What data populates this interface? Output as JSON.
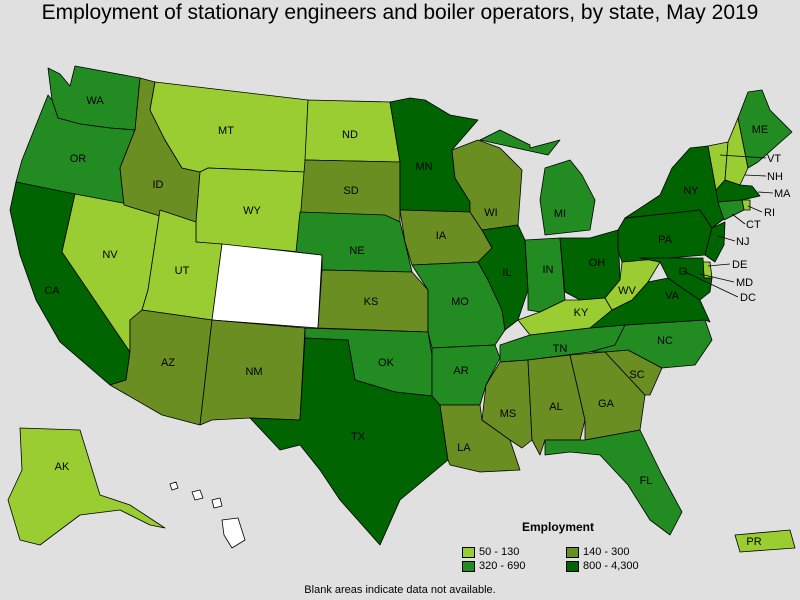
{
  "title": "Employment of stationary engineers and boiler operators, by state, May 2019",
  "legend": {
    "title": "Employment",
    "items": [
      {
        "label": "50 - 130",
        "color": "#9acd32"
      },
      {
        "label": "140 - 300",
        "color": "#6b8e23"
      },
      {
        "label": "320 - 690",
        "color": "#228b22"
      },
      {
        "label": "800 - 4,300",
        "color": "#006400"
      }
    ]
  },
  "colors": {
    "no_data": "#ffffff",
    "border": "#000000",
    "background": "#e0e0e0"
  },
  "footnote": "Blank areas indicate data not available.",
  "states": [
    {
      "code": "WA",
      "label": "WA",
      "class": 2
    },
    {
      "code": "OR",
      "label": "OR",
      "class": 2
    },
    {
      "code": "CA",
      "label": "CA",
      "class": 3
    },
    {
      "code": "NV",
      "label": "NV",
      "class": 0
    },
    {
      "code": "ID",
      "label": "ID",
      "class": 1
    },
    {
      "code": "MT",
      "label": "MT",
      "class": 0
    },
    {
      "code": "WY",
      "label": "WY",
      "class": 0
    },
    {
      "code": "UT",
      "label": "UT",
      "class": 0
    },
    {
      "code": "CO",
      "label": "",
      "class": -1
    },
    {
      "code": "AZ",
      "label": "AZ",
      "class": 1
    },
    {
      "code": "NM",
      "label": "NM",
      "class": 1
    },
    {
      "code": "ND",
      "label": "ND",
      "class": 0
    },
    {
      "code": "SD",
      "label": "SD",
      "class": 1
    },
    {
      "code": "NE",
      "label": "NE",
      "class": 2
    },
    {
      "code": "KS",
      "label": "KS",
      "class": 1
    },
    {
      "code": "OK",
      "label": "OK",
      "class": 2
    },
    {
      "code": "TX",
      "label": "TX",
      "class": 3
    },
    {
      "code": "MN",
      "label": "MN",
      "class": 3
    },
    {
      "code": "IA",
      "label": "IA",
      "class": 1
    },
    {
      "code": "MO",
      "label": "MO",
      "class": 2
    },
    {
      "code": "AR",
      "label": "AR",
      "class": 2
    },
    {
      "code": "LA",
      "label": "LA",
      "class": 1
    },
    {
      "code": "WI",
      "label": "WI",
      "class": 1
    },
    {
      "code": "IL",
      "label": "IL",
      "class": 3
    },
    {
      "code": "MI",
      "label": "MI",
      "class": 2
    },
    {
      "code": "IN",
      "label": "IN",
      "class": 2
    },
    {
      "code": "OH",
      "label": "OH",
      "class": 3
    },
    {
      "code": "KY",
      "label": "KY",
      "class": 0
    },
    {
      "code": "TN",
      "label": "TN",
      "class": 2
    },
    {
      "code": "MS",
      "label": "MS",
      "class": 1
    },
    {
      "code": "AL",
      "label": "AL",
      "class": 1
    },
    {
      "code": "GA",
      "label": "GA",
      "class": 1
    },
    {
      "code": "FL",
      "label": "FL",
      "class": 2
    },
    {
      "code": "SC",
      "label": "SC",
      "class": 1
    },
    {
      "code": "NC",
      "label": "NC",
      "class": 2
    },
    {
      "code": "VA",
      "label": "VA",
      "class": 3
    },
    {
      "code": "WV",
      "label": "WV",
      "class": 0
    },
    {
      "code": "PA",
      "label": "PA",
      "class": 3
    },
    {
      "code": "NY",
      "label": "NY",
      "class": 3
    },
    {
      "code": "VT",
      "label": "VT",
      "class": 0
    },
    {
      "code": "NH",
      "label": "NH",
      "class": 0
    },
    {
      "code": "ME",
      "label": "ME",
      "class": 2
    },
    {
      "code": "MA",
      "label": "MA",
      "class": 3
    },
    {
      "code": "RI",
      "label": "RI",
      "class": 0
    },
    {
      "code": "CT",
      "label": "CT",
      "class": 2
    },
    {
      "code": "NJ",
      "label": "NJ",
      "class": 3
    },
    {
      "code": "DE",
      "label": "DE",
      "class": 0
    },
    {
      "code": "MD",
      "label": "MD",
      "class": 3
    },
    {
      "code": "DC",
      "label": "DC",
      "class": 3
    },
    {
      "code": "AK",
      "label": "AK",
      "class": 0
    },
    {
      "code": "HI",
      "label": "",
      "class": -1
    },
    {
      "code": "PR",
      "label": "PR",
      "class": 0
    }
  ]
}
